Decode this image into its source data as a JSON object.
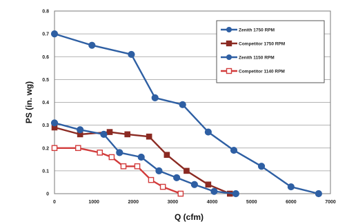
{
  "chart_data": {
    "type": "line",
    "title": "",
    "xlabel": "Q (cfm)",
    "ylabel": "PS (in. wg)",
    "xlim": [
      0,
      7000
    ],
    "ylim": [
      0,
      0.8
    ],
    "xticks": [
      0,
      1000,
      2000,
      3000,
      4000,
      5000,
      6000,
      7000
    ],
    "yticks": [
      0,
      0.1,
      0.2,
      0.3,
      0.4,
      0.5,
      0.6,
      0.7,
      0.8
    ],
    "ytick_labels": [
      "0",
      "0.1",
      "0.2",
      "0.3",
      "0.4",
      "0.5",
      "0.6",
      "0.7",
      "0.8"
    ],
    "grid": "horizontal",
    "legend_position": "top-right",
    "series": [
      {
        "name": "Zenith 1750 RPM",
        "color": "#2e5fa3",
        "marker": "circle",
        "filled": true,
        "x": [
          0,
          950,
          1950,
          2550,
          3250,
          3900,
          4550,
          5250,
          6000,
          6700
        ],
        "y": [
          0.7,
          0.65,
          0.61,
          0.42,
          0.39,
          0.27,
          0.19,
          0.12,
          0.03,
          0.0
        ]
      },
      {
        "name": "Competitor 1750 RPM",
        "color": "#8b2a22",
        "marker": "square",
        "filled": true,
        "x": [
          0,
          650,
          1400,
          1850,
          2400,
          2850,
          3350,
          3900,
          4450
        ],
        "y": [
          0.29,
          0.26,
          0.27,
          0.26,
          0.25,
          0.17,
          0.1,
          0.04,
          0.0
        ]
      },
      {
        "name": "Zenith 1150 RPM",
        "color": "#2e5fa3",
        "marker": "circle",
        "filled": true,
        "x": [
          0,
          650,
          1250,
          1650,
          2200,
          2650,
          3100,
          3550,
          4050,
          4600
        ],
        "y": [
          0.31,
          0.28,
          0.26,
          0.18,
          0.16,
          0.1,
          0.07,
          0.04,
          0.01,
          0.0
        ]
      },
      {
        "name": "Competitor 1140 RPM",
        "color": "#d23b3b",
        "marker": "square",
        "filled": false,
        "x": [
          0,
          600,
          1150,
          1450,
          1750,
          2100,
          2450,
          2750,
          3200
        ],
        "y": [
          0.2,
          0.2,
          0.18,
          0.16,
          0.12,
          0.12,
          0.06,
          0.03,
          0.0
        ]
      }
    ]
  }
}
